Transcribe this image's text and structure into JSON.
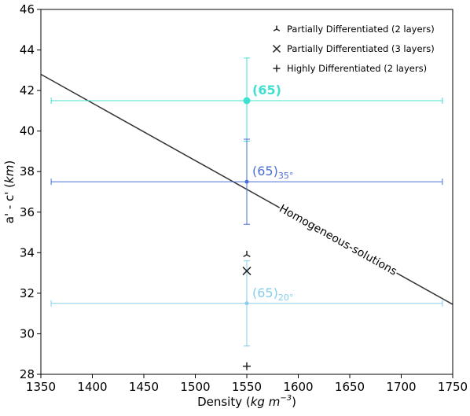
{
  "chart_data": {
    "type": "scatter",
    "xlabel": "Density (kg m⁻³)",
    "xlabel_parts": {
      "main": "Density (",
      "unit": "kg m",
      "exp": "−3",
      "close": ")"
    },
    "ylabel": "a' - c' (km)",
    "ylabel_parts": {
      "main": "a' - c' (",
      "unit": "km",
      "close": ")"
    },
    "xlim": [
      1350,
      1750
    ],
    "ylim": [
      28,
      46
    ],
    "xticks": [
      1350,
      1400,
      1450,
      1500,
      1550,
      1600,
      1650,
      1700,
      1750
    ],
    "yticks": [
      28,
      30,
      32,
      34,
      36,
      38,
      40,
      42,
      44,
      46
    ],
    "grid": false,
    "legend_position": "top-right",
    "legend": [
      {
        "marker": "tri-down",
        "label": "Partially Differentiated (2 layers)"
      },
      {
        "marker": "x",
        "label": "Partially Differentiated (3 layers)"
      },
      {
        "marker": "plus",
        "label": "Highly Differentiated (2 layers)"
      }
    ],
    "line": {
      "label": "Homogeneous-solutions",
      "color": "#333333",
      "points": [
        [
          1350,
          42.8
        ],
        [
          1750,
          31.45
        ]
      ]
    },
    "errorbar_points": [
      {
        "label": "(65)",
        "sub": "",
        "color": "#40e0d0",
        "x": 1550,
        "y": 41.5,
        "xerr": [
          1360,
          1740
        ],
        "yerr": [
          39.5,
          43.6
        ],
        "bold": true,
        "marker_size": 4.5
      },
      {
        "label": "(65)",
        "sub": "35°",
        "color": "#4a6fd6",
        "x": 1550,
        "y": 37.5,
        "xerr": [
          1360,
          1740
        ],
        "yerr": [
          35.4,
          39.6
        ],
        "bold": false,
        "marker_size": 2.5
      },
      {
        "label": "(65)",
        "sub": "20°",
        "color": "#87ceeb",
        "x": 1550,
        "y": 31.5,
        "xerr": [
          1360,
          1740
        ],
        "yerr": [
          29.4,
          33.6
        ],
        "bold": false,
        "marker_size": 2.5
      }
    ],
    "marker_points": [
      {
        "marker": "tri-down",
        "x": 1550,
        "y": 33.9
      },
      {
        "marker": "x",
        "x": 1550,
        "y": 33.1
      },
      {
        "marker": "plus",
        "x": 1550,
        "y": 28.4
      }
    ]
  }
}
